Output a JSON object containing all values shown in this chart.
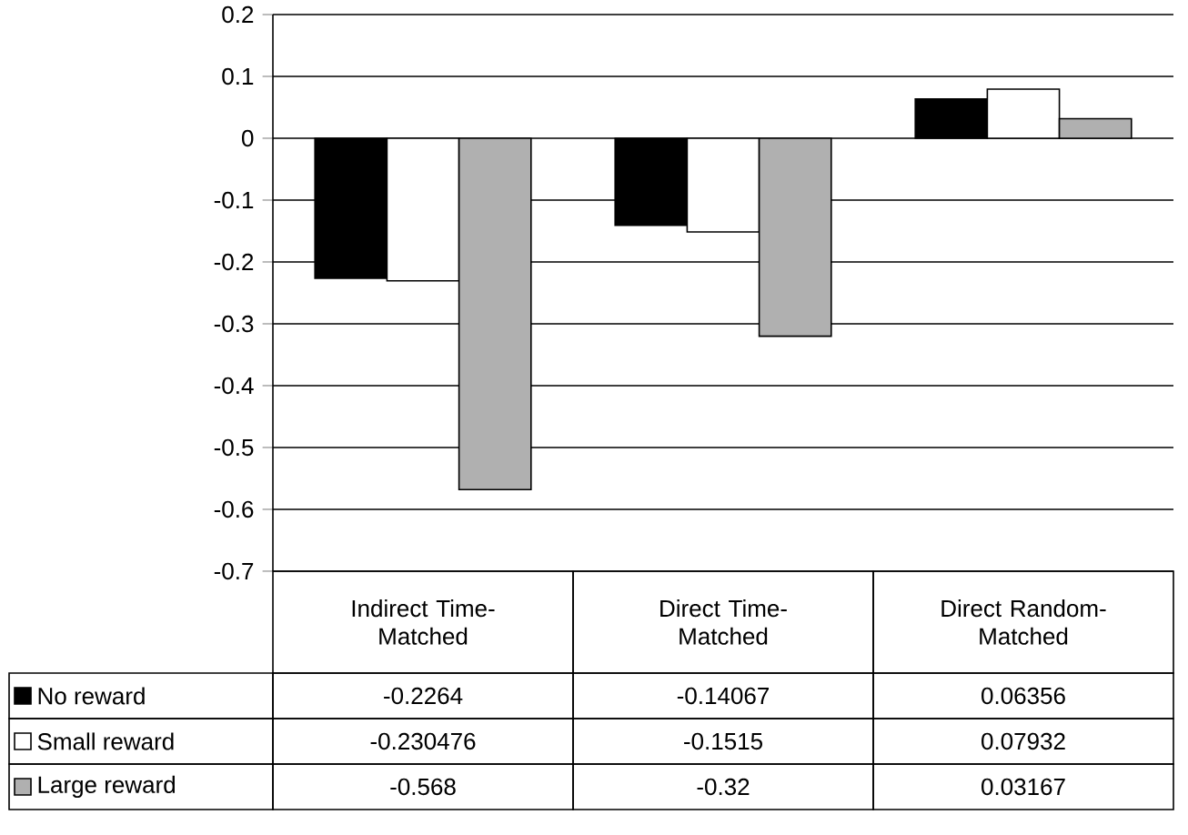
{
  "chart_data": {
    "type": "bar",
    "categories": [
      "Indirect Time-Matched",
      "Direct Time-Matched",
      "Direct Random-Matched"
    ],
    "series": [
      {
        "name": "No reward",
        "color": "#000000",
        "values": [
          -0.2264,
          -0.14067,
          0.06356
        ]
      },
      {
        "name": "Small reward",
        "color": "#ffffff",
        "values": [
          -0.230476,
          -0.1515,
          0.07932
        ]
      },
      {
        "name": "Large reward",
        "color": "#b0b0b0",
        "values": [
          -0.568,
          -0.32,
          0.03167
        ]
      }
    ],
    "ylim": [
      -0.7,
      0.2
    ],
    "yticks": [
      0.2,
      0.1,
      0,
      -0.1,
      -0.2,
      -0.3,
      -0.4,
      -0.5,
      -0.6,
      -0.7
    ],
    "grid": "y",
    "legend": "bottom left",
    "data_labels": true
  }
}
